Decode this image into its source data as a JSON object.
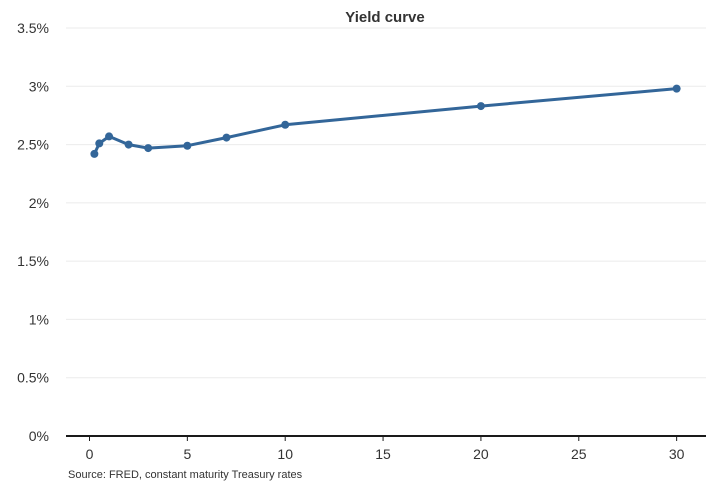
{
  "chart_data": {
    "type": "line",
    "title": "Yield curve",
    "xlabel": "",
    "ylabel": "",
    "source": "Source: FRED, constant maturity Treasury rates",
    "xlim": [
      -1.2,
      31.5
    ],
    "ylim": [
      0,
      3.5
    ],
    "x_ticks": [
      0,
      5,
      10,
      15,
      20,
      25,
      30
    ],
    "x_tick_labels": [
      "0",
      "5",
      "10",
      "15",
      "20",
      "25",
      "30"
    ],
    "y_ticks": [
      0,
      0.5,
      1,
      1.5,
      2,
      2.5,
      3,
      3.5
    ],
    "y_tick_labels": [
      "0%",
      "0.5%",
      "1%",
      "1.5%",
      "2%",
      "2.5%",
      "3%",
      "3.5%"
    ],
    "grid": true,
    "series": [
      {
        "color": "#336699",
        "x": [
          0.25,
          0.5,
          1,
          2,
          3,
          5,
          7,
          10,
          20,
          30
        ],
        "values": [
          2.42,
          2.51,
          2.57,
          2.5,
          2.47,
          2.49,
          2.56,
          2.67,
          2.83,
          2.98
        ]
      }
    ]
  }
}
